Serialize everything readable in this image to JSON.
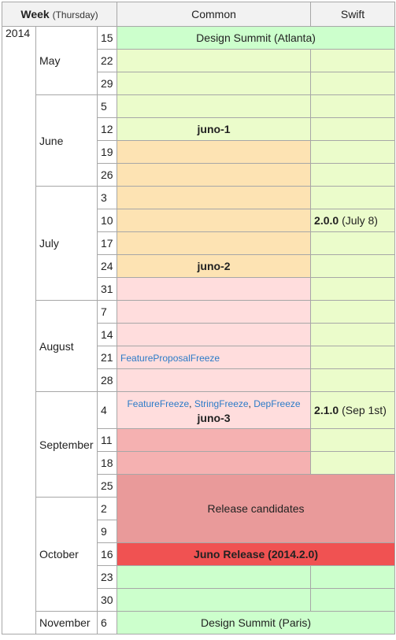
{
  "header": {
    "week": "Week",
    "week_sub": "(Thursday)",
    "common": "Common",
    "swift": "Swift"
  },
  "year": "2014",
  "months": {
    "may": "May",
    "june": "June",
    "july": "July",
    "august": "August",
    "september": "September",
    "october": "October",
    "november": "November"
  },
  "days": [
    "15",
    "22",
    "29",
    "5",
    "12",
    "19",
    "26",
    "3",
    "10",
    "17",
    "24",
    "31",
    "7",
    "14",
    "21",
    "28",
    "4",
    "11",
    "18",
    "25",
    "2",
    "9",
    "16",
    "23",
    "30",
    "6"
  ],
  "events": {
    "design_summit_atlanta": "Design Summit (Atlanta)",
    "juno1": "juno-1",
    "swift_200": "2.0.0",
    "swift_200_date": "(July 8)",
    "juno2": "juno-2",
    "fpf": "FeatureProposalFreeze",
    "ff": "FeatureFreeze",
    "sf": "StringFreeze",
    "df": "DepFreeze",
    "sep": ", ",
    "juno3": "juno-3",
    "swift_210": "2.1.0",
    "swift_210_date": "(Sep 1st)",
    "release_candidates": "Release candidates",
    "juno_release": "Juno Release (2014.2.0)",
    "design_summit_paris": "Design Summit (Paris)"
  },
  "colors": {
    "summit": "#ccffcc",
    "swift_dev": "#ebfccb",
    "pre_milestone": "#fde3b3",
    "post_milestone": "#ffdddd",
    "freeze": "#f5b1b1",
    "rc": "#e99a9a",
    "release": "#f05252",
    "link": "#2b7bc8"
  }
}
